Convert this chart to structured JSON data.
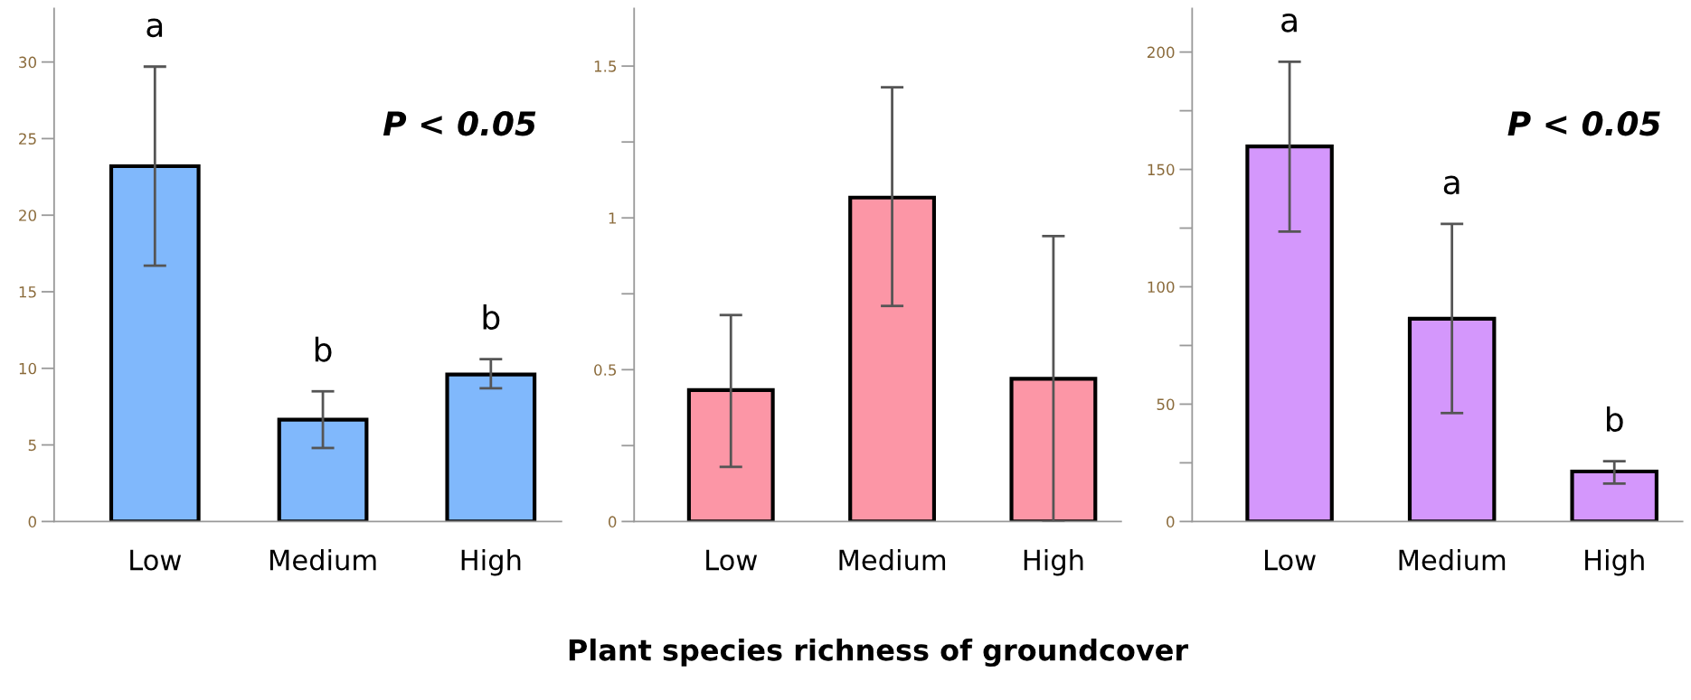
{
  "chart_data": [
    {
      "type": "bar",
      "categories": [
        "Low",
        "Medium",
        "High"
      ],
      "values": [
        23.2,
        6.65,
        9.6
      ],
      "errors": [
        [
          16.7,
          29.7
        ],
        [
          4.8,
          8.5
        ],
        [
          8.7,
          10.6
        ]
      ],
      "color": "#80b8fc",
      "ylim": [
        0,
        33.5
      ],
      "yticks": [
        0,
        5,
        10,
        15,
        20,
        25,
        30
      ],
      "grid": false,
      "annotations": [
        "a",
        "b",
        "b",
        "P < 0.05"
      ]
    },
    {
      "type": "bar",
      "categories": [
        "Low",
        "Medium",
        "High"
      ],
      "values": [
        0.433,
        1.067,
        0.47
      ],
      "errors": [
        [
          0.18,
          0.68
        ],
        [
          0.71,
          1.43
        ],
        [
          0,
          0.94
        ]
      ],
      "color": "#fc96a6",
      "ylim": [
        0,
        1.69
      ],
      "yticks": [
        0,
        {
          "value": 0.25,
          "label": null
        },
        0.5,
        {
          "value": 0.75,
          "label": null
        },
        1,
        {
          "value": 1.25,
          "label": null
        },
        1.5
      ],
      "grid": false,
      "xlabel": "Plant species richness of groundcover"
    },
    {
      "type": "bar",
      "categories": [
        "Low",
        "Medium",
        "High"
      ],
      "values": [
        159.8,
        86.4,
        21.3
      ],
      "errors": [
        [
          123.5,
          195.9
        ],
        [
          46.2,
          126.8
        ],
        [
          16.2,
          25.7
        ]
      ],
      "color": "#d497fc",
      "ylim": [
        0,
        218.6
      ],
      "yticks": [
        0,
        {
          "value": 25,
          "label": null
        },
        50,
        {
          "value": 75,
          "label": null
        },
        100,
        {
          "value": 125,
          "label": null
        },
        150,
        {
          "value": 175,
          "label": null
        },
        200
      ],
      "grid": false,
      "annotations": [
        "a",
        "a",
        "b",
        "P < 0.05"
      ]
    }
  ]
}
